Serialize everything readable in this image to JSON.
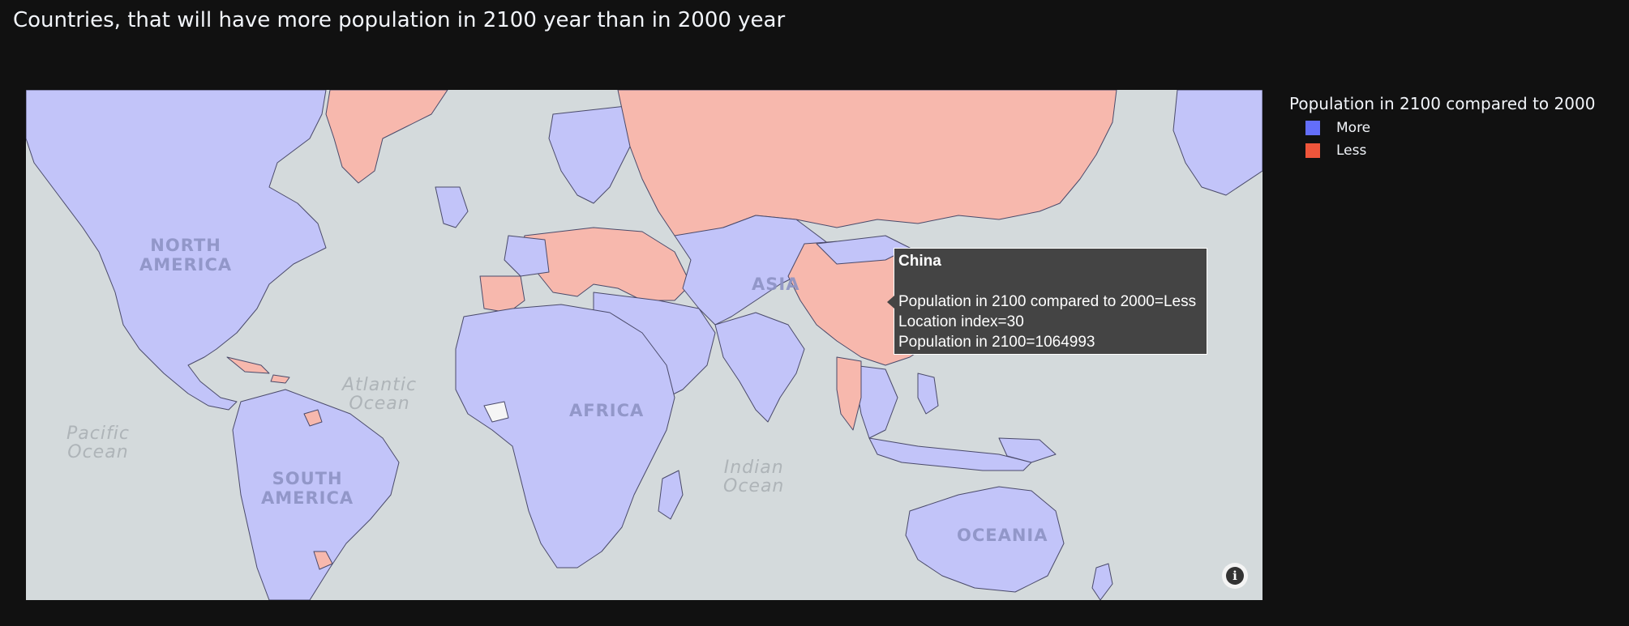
{
  "title": "Countries, that will have more population in 2100 year than in 2000 year",
  "legend": {
    "title": "Population in 2100 compared to 2000",
    "items": [
      {
        "label": "More",
        "color": "#636efa"
      },
      {
        "label": "Less",
        "color": "#ef553b"
      }
    ]
  },
  "map": {
    "fill_more": "#c2c4f9",
    "fill_less": "#f7b8ad",
    "land_base": "#e9ebee",
    "water": "#d4dadc",
    "continent_labels": {
      "north_america": "NORTH\nAMERICA",
      "south_america": "SOUTH\nAMERICA",
      "africa": "AFRICA",
      "asia": "ASIA",
      "oceania": "OCEANIA"
    },
    "ocean_labels": {
      "atlantic": "Atlantic\nOcean",
      "pacific": "Pacific\nOcean",
      "indian": "Indian\nOcean"
    }
  },
  "tooltip": {
    "title": "China",
    "lines": [
      "Population in 2100 compared to 2000=Less",
      "Location index=30",
      "Population in 2100=1064993"
    ]
  },
  "info_icon": "info-icon"
}
